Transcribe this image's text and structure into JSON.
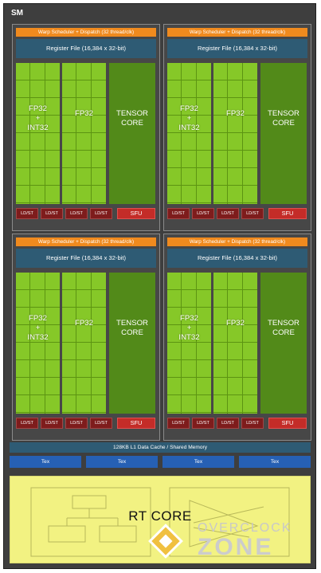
{
  "sm_label": "SM",
  "quadrant": {
    "warp_scheduler": "Warp Scheduler + Dispatch (32 thread/clk)",
    "register_file": "Register File (16,384 x 32-bit)",
    "fp32_int32": {
      "line1": "FP32",
      "line2": "+",
      "line3": "INT32"
    },
    "fp32": "FP32",
    "tensor": {
      "line1": "TENSOR",
      "line2": "CORE"
    },
    "ldst": "LD/ST",
    "sfu": "SFU"
  },
  "l1_cache": "128KB L1 Data Cache / Shared Memory",
  "tex": [
    "Tex",
    "Tex",
    "Tex",
    "Tex"
  ],
  "rt_core": "RT CORE",
  "watermark": {
    "line1": "OVERCLOCK",
    "line2": "ZONE"
  },
  "colors": {
    "warp": "#f08a1e",
    "register": "#2e5b74",
    "fp_green": "#86c828",
    "tensor_green": "#528a19",
    "ldst": "#7e1c1c",
    "sfu": "#c42c28",
    "tex": "#2660b4",
    "rt": "#f2f282"
  }
}
